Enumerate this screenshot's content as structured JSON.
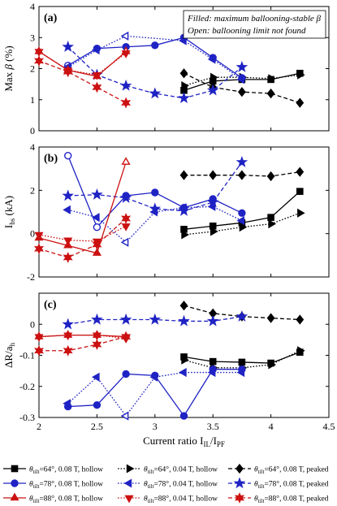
{
  "colors": {
    "black": "#000000",
    "blue": "#1f23c4",
    "red": "#cc1111"
  },
  "legend_box": {
    "line1": "Filled: maximum ballooning-stable β",
    "line2": "Open: ballooning limit not found"
  },
  "bottom_legend": [
    {
      "color": "#000000",
      "marker": "square",
      "dash": "solid",
      "label": "θtilt=64°, 0.08 T, hollow"
    },
    {
      "color": "#000000",
      "marker": "triangle-right",
      "dash": "dotted",
      "label": "θtilt=64°, 0.04 T, hollow"
    },
    {
      "color": "#000000",
      "marker": "diamond",
      "dash": "dashed",
      "label": "θtilt=64°, 0.08 T, peaked"
    },
    {
      "color": "#1f23c4",
      "marker": "circle",
      "dash": "solid",
      "label": "θtilt=78°, 0.08 T, hollow"
    },
    {
      "color": "#1f23c4",
      "marker": "triangle-left",
      "dash": "dotted",
      "label": "θtilt=78°, 0.04 T, hollow"
    },
    {
      "color": "#1f23c4",
      "marker": "star5",
      "dash": "dashed",
      "label": "θtilt=78°, 0.08 T, peaked"
    },
    {
      "color": "#cc1111",
      "marker": "triangle-up",
      "dash": "solid",
      "label": "θtilt=88°, 0.08 T, hollow"
    },
    {
      "color": "#cc1111",
      "marker": "triangle-down",
      "dash": "dotted",
      "label": "θtilt=88°, 0.04 T, hollow"
    },
    {
      "color": "#cc1111",
      "marker": "star6",
      "dash": "dashed",
      "label": "θtilt=88°, 0.08 T, peaked"
    }
  ],
  "chart_data": [
    {
      "type": "line",
      "panel_label": "(a)",
      "ylabel": "Max β (%)",
      "xlim": [
        2,
        4.5
      ],
      "ylim": [
        0,
        4
      ],
      "xticks": [
        2,
        2.5,
        3,
        3.5,
        4,
        4.5
      ],
      "yticks": [
        0,
        1,
        2,
        3,
        4
      ],
      "ytick_labels": [
        "0",
        "1",
        "2",
        "3",
        "4"
      ],
      "series": [
        {
          "color": "#000000",
          "marker": "square",
          "dash": "solid",
          "points": [
            [
              3.25,
              1.3,
              "f"
            ],
            [
              3.5,
              1.6,
              "f"
            ],
            [
              3.75,
              1.65,
              "f"
            ],
            [
              4,
              1.65,
              "f"
            ],
            [
              4.25,
              1.85,
              "f"
            ]
          ]
        },
        {
          "color": "#000000",
          "marker": "triangle-right",
          "dash": "dotted",
          "points": [
            [
              3.25,
              1.45,
              "f"
            ],
            [
              3.5,
              1.72,
              "f"
            ],
            [
              3.75,
              1.72,
              "f"
            ],
            [
              4,
              1.68,
              "f"
            ],
            [
              4.25,
              1.8,
              "f"
            ]
          ]
        },
        {
          "color": "#000000",
          "marker": "diamond",
          "dash": "dashed",
          "points": [
            [
              3.25,
              1.85,
              "f"
            ],
            [
              3.5,
              1.4,
              "f"
            ],
            [
              3.75,
              1.25,
              "f"
            ],
            [
              4,
              1.2,
              "f"
            ],
            [
              4.25,
              0.9,
              "f"
            ]
          ]
        },
        {
          "color": "#1f23c4",
          "marker": "circle",
          "dash": "solid",
          "points": [
            [
              2.25,
              2.1,
              "o"
            ],
            [
              2.5,
              2.65,
              "f"
            ],
            [
              2.75,
              2.7,
              "f"
            ],
            [
              3,
              2.75,
              "f"
            ],
            [
              3.25,
              3,
              "f"
            ],
            [
              3.5,
              2.35,
              "f"
            ],
            [
              3.75,
              1.7,
              "f"
            ]
          ]
        },
        {
          "color": "#1f23c4",
          "marker": "triangle-left",
          "dash": "dotted",
          "points": [
            [
              2.25,
              2.05,
              "f"
            ],
            [
              2.5,
              2.6,
              "f"
            ],
            [
              2.75,
              3.05,
              "o"
            ],
            [
              3.25,
              2.9,
              "f"
            ],
            [
              3.5,
              2.3,
              "f"
            ],
            [
              3.75,
              1.65,
              "f"
            ]
          ]
        },
        {
          "color": "#1f23c4",
          "marker": "star5",
          "dash": "dashed",
          "points": [
            [
              2.25,
              2.7,
              "f"
            ],
            [
              2.5,
              1.8,
              "f"
            ],
            [
              2.75,
              1.45,
              "f"
            ],
            [
              3,
              1.2,
              "f"
            ],
            [
              3.25,
              1.05,
              "f"
            ],
            [
              3.5,
              1.3,
              "f"
            ],
            [
              3.75,
              2.05,
              "f"
            ]
          ]
        },
        {
          "color": "#cc1111",
          "marker": "triangle-up",
          "dash": "solid",
          "points": [
            [
              2,
              2.55,
              "f"
            ],
            [
              2.25,
              1.95,
              "f"
            ],
            [
              2.5,
              1.75,
              "f"
            ],
            [
              2.75,
              2.55,
              "o"
            ]
          ]
        },
        {
          "color": "#cc1111",
          "marker": "triangle-down",
          "dash": "dotted",
          "points": [
            [
              2,
              2.55,
              "f"
            ],
            [
              2.25,
              1.95,
              "f"
            ],
            [
              2.5,
              1.8,
              "f"
            ],
            [
              2.75,
              2.5,
              "f"
            ]
          ]
        },
        {
          "color": "#cc1111",
          "marker": "star6",
          "dash": "dashed",
          "points": [
            [
              2,
              2.25,
              "f"
            ],
            [
              2.25,
              1.9,
              "f"
            ],
            [
              2.5,
              1.4,
              "f"
            ],
            [
              2.75,
              0.9,
              "f"
            ]
          ]
        }
      ]
    },
    {
      "type": "line",
      "panel_label": "(b)",
      "ylabel": "Ibs (kA)",
      "xlim": [
        2,
        4.5
      ],
      "ylim": [
        -2,
        4
      ],
      "xticks": [
        2,
        2.5,
        3,
        3.5,
        4,
        4.5
      ],
      "yticks": [
        -2,
        0,
        2,
        4
      ],
      "ytick_labels": [
        "-2",
        "0",
        "2",
        "4"
      ],
      "series": [
        {
          "color": "#000000",
          "marker": "square",
          "dash": "solid",
          "points": [
            [
              3.25,
              0.2,
              "f"
            ],
            [
              3.5,
              0.35,
              "f"
            ],
            [
              3.75,
              0.5,
              "f"
            ],
            [
              4,
              0.75,
              "f"
            ],
            [
              4.25,
              1.95,
              "f"
            ]
          ]
        },
        {
          "color": "#000000",
          "marker": "triangle-right",
          "dash": "dotted",
          "points": [
            [
              3.25,
              -0.05,
              "f"
            ],
            [
              3.5,
              0.1,
              "f"
            ],
            [
              3.75,
              0.3,
              "f"
            ],
            [
              4,
              0.45,
              "f"
            ],
            [
              4.25,
              0.95,
              "f"
            ]
          ]
        },
        {
          "color": "#000000",
          "marker": "diamond",
          "dash": "dashed",
          "points": [
            [
              3.25,
              2.7,
              "f"
            ],
            [
              3.5,
              2.7,
              "f"
            ],
            [
              3.75,
              2.7,
              "f"
            ],
            [
              4,
              2.65,
              "f"
            ],
            [
              4.25,
              2.85,
              "f"
            ]
          ]
        },
        {
          "color": "#1f23c4",
          "marker": "circle",
          "dash": "solid",
          "points": [
            [
              2.25,
              3.6,
              "o"
            ],
            [
              2.5,
              0.3,
              "o"
            ],
            [
              2.75,
              1.75,
              "f"
            ],
            [
              3,
              1.9,
              "f"
            ],
            [
              3.25,
              1.2,
              "f"
            ],
            [
              3.5,
              1.6,
              "f"
            ],
            [
              3.75,
              0.95,
              "f"
            ]
          ]
        },
        {
          "color": "#1f23c4",
          "marker": "triangle-left",
          "dash": "dotted",
          "points": [
            [
              2.25,
              1.1,
              "f"
            ],
            [
              2.5,
              0.75,
              "f"
            ],
            [
              2.75,
              -0.4,
              "o"
            ],
            [
              3,
              1.0,
              "f"
            ],
            [
              3.25,
              1.2,
              "f"
            ],
            [
              3.5,
              1.25,
              "f"
            ],
            [
              3.75,
              0.6,
              "f"
            ]
          ]
        },
        {
          "color": "#1f23c4",
          "marker": "star5",
          "dash": "dashed",
          "points": [
            [
              2.25,
              1.75,
              "f"
            ],
            [
              2.5,
              1.8,
              "f"
            ],
            [
              2.75,
              1.65,
              "f"
            ],
            [
              3,
              1.15,
              "f"
            ],
            [
              3.25,
              1.05,
              "f"
            ],
            [
              3.5,
              1.45,
              "f"
            ],
            [
              3.75,
              3.3,
              "f"
            ]
          ]
        },
        {
          "color": "#cc1111",
          "marker": "triangle-up",
          "dash": "solid",
          "points": [
            [
              2,
              -0.2,
              "f"
            ],
            [
              2.25,
              -0.55,
              "f"
            ],
            [
              2.5,
              -0.9,
              "f"
            ],
            [
              2.75,
              3.3,
              "o"
            ]
          ]
        },
        {
          "color": "#cc1111",
          "marker": "triangle-down",
          "dash": "dotted",
          "points": [
            [
              2,
              -0.05,
              "f"
            ],
            [
              2.25,
              -0.3,
              "f"
            ],
            [
              2.5,
              -0.35,
              "f"
            ],
            [
              2.75,
              0.35,
              "f"
            ]
          ]
        },
        {
          "color": "#cc1111",
          "marker": "star6",
          "dash": "dashed",
          "points": [
            [
              2,
              -0.7,
              "f"
            ],
            [
              2.25,
              -1.1,
              "f"
            ],
            [
              2.5,
              -0.5,
              "f"
            ],
            [
              2.75,
              0.7,
              "f"
            ]
          ]
        }
      ]
    },
    {
      "type": "line",
      "panel_label": "(c)",
      "ylabel": "ΔR/ah",
      "xlabel": "Current ratio IIL/IPF",
      "xlim": [
        2,
        4.5
      ],
      "ylim": [
        -0.3,
        0.1
      ],
      "xticks": [
        2,
        2.5,
        3,
        3.5,
        4,
        4.5
      ],
      "xtick_labels": [
        "2",
        "2.5",
        "3",
        "3.5",
        "4",
        "4.5"
      ],
      "yticks": [
        -0.3,
        -0.2,
        -0.1,
        0
      ],
      "ytick_labels": [
        "-0.3",
        "-0.2",
        "-0.1",
        "0"
      ],
      "series": [
        {
          "color": "#000000",
          "marker": "square",
          "dash": "solid",
          "points": [
            [
              3.25,
              -0.105,
              "f"
            ],
            [
              3.5,
              -0.12,
              "f"
            ],
            [
              3.75,
              -0.122,
              "f"
            ],
            [
              4,
              -0.125,
              "f"
            ],
            [
              4.25,
              -0.09,
              "f"
            ]
          ]
        },
        {
          "color": "#000000",
          "marker": "triangle-right",
          "dash": "dotted",
          "points": [
            [
              3.25,
              -0.115,
              "f"
            ],
            [
              3.5,
              -0.14,
              "f"
            ],
            [
              3.75,
              -0.14,
              "f"
            ],
            [
              4,
              -0.13,
              "f"
            ],
            [
              4.25,
              -0.085,
              "f"
            ]
          ]
        },
        {
          "color": "#000000",
          "marker": "diamond",
          "dash": "dashed",
          "points": [
            [
              3.25,
              0.06,
              "f"
            ],
            [
              3.5,
              0.035,
              "f"
            ],
            [
              3.75,
              0.025,
              "f"
            ],
            [
              4,
              0.02,
              "f"
            ],
            [
              4.25,
              0.015,
              "f"
            ]
          ]
        },
        {
          "color": "#1f23c4",
          "marker": "circle",
          "dash": "solid",
          "points": [
            [
              2.25,
              -0.265,
              "f"
            ],
            [
              2.5,
              -0.26,
              "f"
            ],
            [
              2.75,
              -0.16,
              "f"
            ],
            [
              3,
              -0.165,
              "f"
            ],
            [
              3.25,
              -0.295,
              "f"
            ],
            [
              3.5,
              -0.145,
              "f"
            ],
            [
              3.75,
              -0.145,
              "f"
            ]
          ]
        },
        {
          "color": "#1f23c4",
          "marker": "triangle-left",
          "dash": "dotted",
          "points": [
            [
              2.25,
              -0.255,
              "f"
            ],
            [
              2.5,
              -0.17,
              "f"
            ],
            [
              2.75,
              -0.295,
              "o"
            ],
            [
              3,
              -0.17,
              "f"
            ],
            [
              3.25,
              -0.155,
              "f"
            ],
            [
              3.5,
              -0.155,
              "f"
            ],
            [
              3.75,
              -0.155,
              "f"
            ]
          ]
        },
        {
          "color": "#1f23c4",
          "marker": "star5",
          "dash": "dashed",
          "points": [
            [
              2.25,
              0,
              "f"
            ],
            [
              2.5,
              0.015,
              "f"
            ],
            [
              2.75,
              0.015,
              "f"
            ],
            [
              3,
              0.015,
              "f"
            ],
            [
              3.25,
              0.01,
              "f"
            ],
            [
              3.5,
              0.01,
              "f"
            ],
            [
              3.75,
              0.025,
              "f"
            ]
          ]
        },
        {
          "color": "#cc1111",
          "marker": "triangle-up",
          "dash": "solid",
          "points": [
            [
              2,
              -0.04,
              "f"
            ],
            [
              2.25,
              -0.035,
              "f"
            ],
            [
              2.5,
              -0.035,
              "f"
            ],
            [
              2.75,
              -0.04,
              "o"
            ]
          ]
        },
        {
          "color": "#cc1111",
          "marker": "triangle-down",
          "dash": "dotted",
          "points": [
            [
              2,
              -0.04,
              "f"
            ],
            [
              2.25,
              -0.035,
              "f"
            ],
            [
              2.5,
              -0.035,
              "f"
            ],
            [
              2.75,
              -0.045,
              "f"
            ]
          ]
        },
        {
          "color": "#cc1111",
          "marker": "star6",
          "dash": "dashed",
          "points": [
            [
              2,
              -0.085,
              "f"
            ],
            [
              2.25,
              -0.085,
              "f"
            ],
            [
              2.5,
              -0.065,
              "f"
            ],
            [
              2.75,
              -0.04,
              "f"
            ]
          ]
        }
      ]
    }
  ]
}
